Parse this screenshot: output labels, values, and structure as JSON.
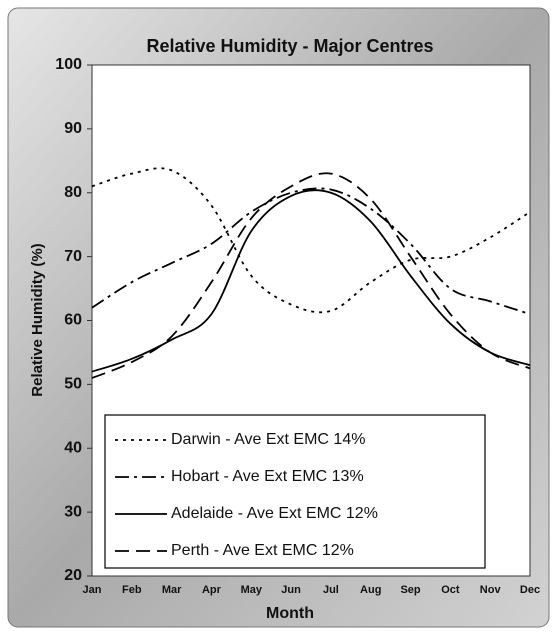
{
  "chart_data": {
    "type": "line",
    "title": "Relative Humidity - Major Centres",
    "x_label": "Month",
    "y_label": "Relative Humidity (%)",
    "categories": [
      "Jan",
      "Feb",
      "Mar",
      "Apr",
      "May",
      "Jun",
      "Jul",
      "Aug",
      "Sep",
      "Oct",
      "Nov",
      "Dec"
    ],
    "ylim": [
      20,
      100
    ],
    "yticks": [
      20,
      30,
      40,
      50,
      60,
      70,
      80,
      90,
      100
    ],
    "legend": "lower left",
    "series": [
      {
        "name": "Darwin - Ave Ext EMC 14%",
        "color": "#000000",
        "dash": "dotted",
        "values": [
          81,
          83,
          83.5,
          78,
          67,
          62.5,
          61.5,
          66,
          69.5,
          70,
          73,
          77
        ]
      },
      {
        "name": "Hobart - Ave Ext EMC 13%",
        "color": "#000000",
        "dash": "dashdot",
        "values": [
          62,
          66,
          69,
          72,
          77,
          80,
          80.5,
          77.5,
          72,
          65,
          63,
          61
        ]
      },
      {
        "name": "Adelaide - Ave Ext EMC 12%",
        "color": "#000000",
        "dash": "solid",
        "values": [
          52,
          54,
          57,
          61,
          74,
          79.5,
          80,
          75.5,
          67,
          59.5,
          55,
          53
        ]
      },
      {
        "name": "Perth - Ave Ext EMC 12%",
        "color": "#000000",
        "dash": "dashed",
        "values": [
          51,
          53.5,
          57.5,
          66,
          76,
          81,
          83,
          79,
          70,
          61,
          55,
          52.5
        ]
      }
    ]
  }
}
